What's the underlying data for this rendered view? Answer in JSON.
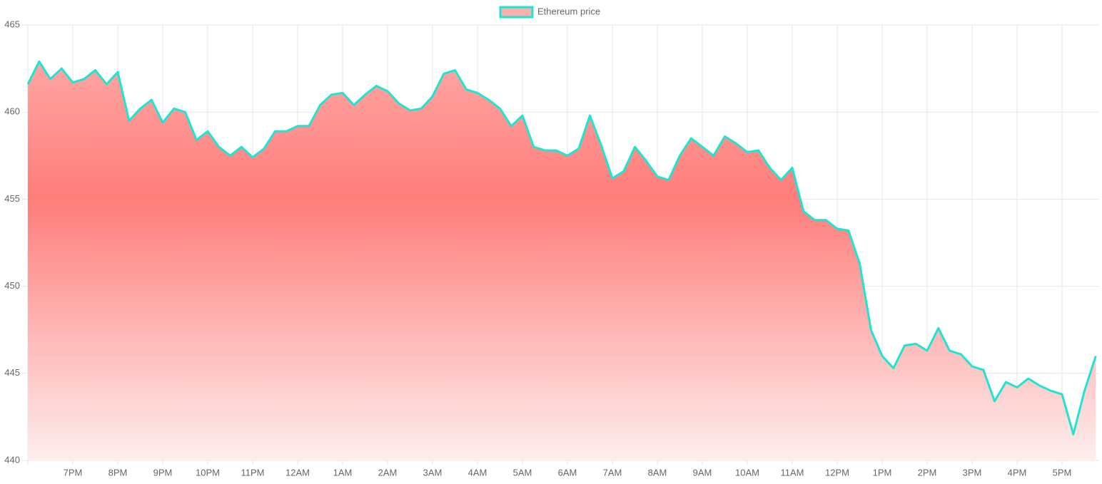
{
  "chart_data": {
    "type": "line",
    "categories": [
      null,
      null,
      null,
      null,
      "7PM",
      null,
      null,
      null,
      "8PM",
      null,
      null,
      null,
      "9PM",
      null,
      null,
      null,
      "10PM",
      null,
      null,
      null,
      "11PM",
      null,
      null,
      null,
      "12AM",
      null,
      null,
      null,
      "1AM",
      null,
      null,
      null,
      "2AM",
      null,
      null,
      null,
      "3AM",
      null,
      null,
      null,
      "4AM",
      null,
      null,
      null,
      "5AM",
      null,
      null,
      null,
      "6AM",
      null,
      null,
      null,
      "7AM",
      null,
      null,
      null,
      "8AM",
      null,
      null,
      null,
      "9AM",
      null,
      null,
      null,
      "10AM",
      null,
      null,
      null,
      "11AM",
      null,
      null,
      null,
      "12PM",
      null,
      null,
      null,
      "1PM",
      null,
      null,
      null,
      "2PM",
      null,
      null,
      null,
      "3PM",
      null,
      null,
      null,
      "4PM",
      null,
      null,
      null,
      "5PM",
      null,
      null,
      null
    ],
    "series": [
      {
        "name": "Ethereum price",
        "color": "#1de5d2",
        "fill": true,
        "values": [
          461.6,
          462.9,
          461.9,
          462.5,
          461.7,
          461.9,
          462.4,
          461.6,
          462.3,
          459.5,
          460.2,
          460.7,
          459.4,
          460.2,
          460,
          458.4,
          458.9,
          458,
          457.5,
          458,
          457.4,
          457.9,
          458.9,
          458.9,
          459.2,
          459.2,
          460.4,
          461,
          461.1,
          460.4,
          461,
          461.5,
          461.2,
          460.5,
          460.1,
          460.2,
          460.9,
          462.2,
          462.4,
          461.3,
          461.1,
          460.7,
          460.2,
          459.2,
          459.8,
          458,
          457.8,
          457.8,
          457.5,
          457.9,
          459.8,
          458.1,
          456.2,
          456.6,
          458,
          457.2,
          456.3,
          456.1,
          457.5,
          458.5,
          458,
          457.5,
          458.6,
          458.2,
          457.7,
          457.8,
          456.8,
          456.1,
          456.8,
          454.3,
          453.8,
          453.8,
          453.3,
          453.2,
          451.3,
          447.5,
          446,
          445.3,
          446.6,
          446.7,
          446.3,
          447.6,
          446.3,
          446.1,
          445.4,
          445.2,
          443.4,
          444.5,
          444.2,
          444.7,
          444.3,
          444,
          443.8,
          441.5,
          444,
          446
        ]
      }
    ],
    "ylim": [
      440,
      465
    ],
    "yticks": [
      440,
      445,
      450,
      455,
      460,
      465
    ],
    "grid": true,
    "legend": "top"
  }
}
